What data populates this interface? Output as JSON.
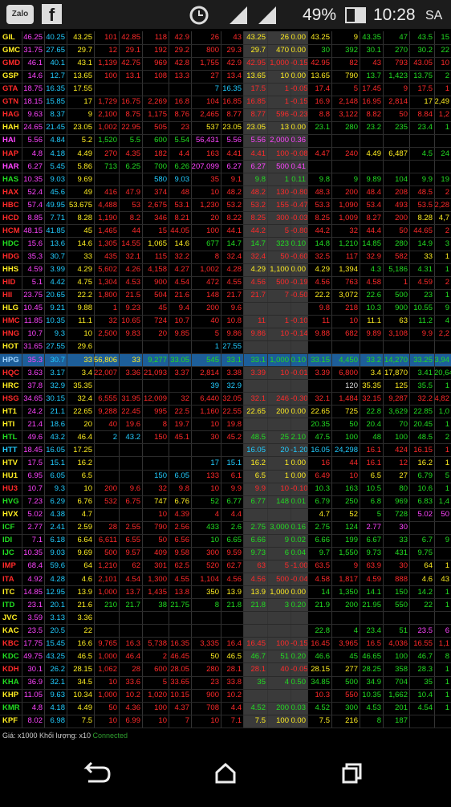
{
  "status_bar": {
    "battery": "49%",
    "time": "10:28",
    "period": "SA"
  },
  "table": {
    "selected_row": 25,
    "rows": [
      [
        "GIL",
        "46.25",
        "40.25",
        "43.25",
        "101",
        "42.85",
        "118",
        "42.9",
        "26",
        "43",
        "43.25",
        "26",
        "0.00",
        "43.25",
        "9",
        "43.35",
        "47",
        "43.5",
        "15"
      ],
      [
        "GMC",
        "31.75",
        "27.65",
        "29.7",
        "12",
        "29.1",
        "192",
        "29.2",
        "800",
        "29.3",
        "29.7",
        "470",
        "0.00",
        "30",
        "392",
        "30.1",
        "270",
        "30.2",
        "22"
      ],
      [
        "GMD",
        "46.1",
        "40.1",
        "43.1",
        "1,139",
        "42.75",
        "969",
        "42.8",
        "1,755",
        "42.9",
        "42.95",
        "1,000",
        "-0.15",
        "42.95",
        "82",
        "43",
        "793",
        "43.05",
        "10"
      ],
      [
        "GSP",
        "14.6",
        "12.7",
        "13.65",
        "100",
        "13.1",
        "108",
        "13.3",
        "27",
        "13.4",
        "13.65",
        "10",
        "0.00",
        "13.65",
        "790",
        "13.7",
        "1,423",
        "13.75",
        "2"
      ],
      [
        "GTA",
        "18.75",
        "16.35",
        "17.55",
        null,
        null,
        null,
        null,
        "7",
        "16.35",
        "17.5",
        "1",
        "-0.05",
        "17.4",
        "5",
        "17.45",
        "9",
        "17.5",
        "1"
      ],
      [
        "GTN",
        "18.15",
        "15.85",
        "17",
        "1,729",
        "16.75",
        "2,269",
        "16.8",
        "104",
        "16.85",
        "16.85",
        "1",
        "-0.15",
        "16.9",
        "2,148",
        "16.95",
        "2,814",
        "17",
        "2,49"
      ],
      [
        "HAG",
        "9.63",
        "8.37",
        "9",
        "2,100",
        "8.75",
        "1,175",
        "8.76",
        "2,465",
        "8.77",
        "8.77",
        "596",
        "-0.23",
        "8.8",
        "3,122",
        "8.82",
        "50",
        "8.84",
        "1,2"
      ],
      [
        "HAH",
        "24.65",
        "21.45",
        "23.05",
        "1,002",
        "22.95",
        "505",
        "23",
        "537",
        "23.05",
        "23.05",
        "13",
        "0.00",
        "23.1",
        "280",
        "23.2",
        "235",
        "23.4",
        "1"
      ],
      [
        "HAI",
        "5.56",
        "4.84",
        "5.2",
        "1,520",
        "5.5",
        "600",
        "5.54",
        "56,431",
        "5.56",
        "5.56",
        "2,000",
        "0.36",
        null,
        null,
        null,
        null,
        null,
        null
      ],
      [
        "HAP",
        "4.8",
        "4.18",
        "4.49",
        "270",
        "4.35",
        "182",
        "4.4",
        "163",
        "4.41",
        "4.41",
        "100",
        "-0.08",
        "4.47",
        "240",
        "4.49",
        "6,487",
        "4.5",
        "24"
      ],
      [
        "HAR",
        "6.27",
        "5.45",
        "5.86",
        "713",
        "6.25",
        "700",
        "6.26",
        "207,099",
        "6.27",
        "6.27",
        "500",
        "0.41",
        null,
        null,
        null,
        null,
        null,
        null
      ],
      [
        "HAS",
        "10.35",
        "9.03",
        "9.69",
        null,
        null,
        "580",
        "9.03",
        "35",
        "9.1",
        "9.8",
        "1",
        "0.11",
        "9.8",
        "9",
        "9.89",
        "104",
        "9.9",
        "19"
      ],
      [
        "HAX",
        "52.4",
        "45.6",
        "49",
        "416",
        "47.9",
        "374",
        "48",
        "10",
        "48.2",
        "48.2",
        "130",
        "-0.80",
        "48.3",
        "200",
        "48.4",
        "208",
        "48.5",
        "2"
      ],
      [
        "HBC",
        "57.4",
        "49.95",
        "53.675",
        "4,488",
        "53",
        "2,675",
        "53.1",
        "1,230",
        "53.2",
        "53.2",
        "155",
        "-0.47",
        "53.3",
        "1,090",
        "53.4",
        "493",
        "53.5",
        "2,28"
      ],
      [
        "HCD",
        "8.85",
        "7.71",
        "8.28",
        "1,190",
        "8.2",
        "346",
        "8.21",
        "20",
        "8.22",
        "8.25",
        "300",
        "-0.03",
        "8.25",
        "1,009",
        "8.27",
        "200",
        "8.28",
        "4,7"
      ],
      [
        "HCM",
        "48.15",
        "41.85",
        "45",
        "1,465",
        "44",
        "15",
        "44.05",
        "100",
        "44.1",
        "44.2",
        "5",
        "-0.80",
        "44.2",
        "32",
        "44.4",
        "50",
        "44.65",
        "2"
      ],
      [
        "HDC",
        "15.6",
        "13.6",
        "14.6",
        "1,305",
        "14.55",
        "1,065",
        "14.6",
        "677",
        "14.7",
        "14.7",
        "323",
        "0.10",
        "14.8",
        "1,210",
        "14.85",
        "280",
        "14.9",
        "3"
      ],
      [
        "HDG",
        "35.3",
        "30.7",
        "33",
        "435",
        "32.1",
        "115",
        "32.2",
        "8",
        "32.4",
        "32.4",
        "50",
        "-0.60",
        "32.5",
        "117",
        "32.9",
        "582",
        "33",
        "1"
      ],
      [
        "HHS",
        "4.59",
        "3.99",
        "4.29",
        "5,602",
        "4.26",
        "4,158",
        "4.27",
        "1,002",
        "4.28",
        "4.29",
        "1,100",
        "0.00",
        "4.29",
        "1,394",
        "4.3",
        "5,186",
        "4.31",
        "1"
      ],
      [
        "HID",
        "5.1",
        "4.42",
        "4.75",
        "1,304",
        "4.53",
        "900",
        "4.54",
        "472",
        "4.55",
        "4.56",
        "500",
        "-0.19",
        "4.56",
        "763",
        "4.58",
        "1",
        "4.59",
        "2"
      ],
      [
        "HII",
        "23.75",
        "20.65",
        "22.2",
        "1,800",
        "21.5",
        "504",
        "21.6",
        "148",
        "21.7",
        "21.7",
        "7",
        "-0.50",
        "22.2",
        "3,072",
        "22.6",
        "500",
        "23",
        "1"
      ],
      [
        "HLG",
        "10.45",
        "9.21",
        "9.88",
        "1",
        "9.23",
        "45",
        "9.4",
        "200",
        "9.6",
        null,
        null,
        null,
        "9.8",
        "218",
        "10.3",
        "900",
        "10.55",
        "9"
      ],
      [
        "HMC",
        "11.85",
        "10.35",
        "11.1",
        "32",
        "10.65",
        "724",
        "10.7",
        "40",
        "10.8",
        "11",
        "1",
        "-0.10",
        "11",
        "10",
        "11.1",
        "63",
        "11.2",
        "4"
      ],
      [
        "HNG",
        "10.7",
        "9.3",
        "10",
        "2,500",
        "9.83",
        "20",
        "9.85",
        "5",
        "9.86",
        "9.86",
        "10",
        "-0.14",
        "9.88",
        "682",
        "9.89",
        "3,108",
        "9.9",
        "2,2"
      ],
      [
        "HOT",
        "31.65",
        "27.55",
        "29.6",
        null,
        null,
        null,
        null,
        "1",
        "27.55",
        null,
        null,
        null,
        null,
        null,
        null,
        null,
        null,
        null
      ],
      [
        "HPG",
        "35.3",
        "30.7",
        "33",
        "56,806",
        "33",
        "9,277",
        "33.05",
        "545",
        "33.1",
        "33.1",
        "1,000",
        "0.10",
        "33.15",
        "4,450",
        "33.2",
        "14,270",
        "33.25",
        "3,94"
      ],
      [
        "HQC",
        "3.63",
        "3.17",
        "3.4",
        "22,007",
        "3.36",
        "21,093",
        "3.37",
        "2,814",
        "3.38",
        "3.39",
        "10",
        "-0.01",
        "3.39",
        "6,800",
        "3.4",
        "17,870",
        "3.41",
        "20,64"
      ],
      [
        "HRC",
        "37.8",
        "32.9",
        "35.35",
        null,
        null,
        null,
        null,
        "39",
        "32.9",
        null,
        null,
        null,
        null,
        "120",
        "35.35",
        "125",
        "35.5",
        "1"
      ],
      [
        "HSG",
        "34.65",
        "30.15",
        "32.4",
        "6,555",
        "31.95",
        "12,009",
        "32",
        "6,440",
        "32.05",
        "32.1",
        "246",
        "-0.30",
        "32.1",
        "1,484",
        "32.15",
        "9,287",
        "32.2",
        "4,82"
      ],
      [
        "HT1",
        "24.2",
        "21.1",
        "22.65",
        "9,288",
        "22.45",
        "995",
        "22.5",
        "1,160",
        "22.55",
        "22.65",
        "200",
        "0.00",
        "22.65",
        "725",
        "22.8",
        "3,629",
        "22.85",
        "1,0"
      ],
      [
        "HTI",
        "21.4",
        "18.6",
        "20",
        "40",
        "19.6",
        "8",
        "19.7",
        "10",
        "19.8",
        null,
        null,
        null,
        "20.35",
        "50",
        "20.4",
        "70",
        "20.45",
        "1"
      ],
      [
        "HTL",
        "49.6",
        "43.2",
        "46.4",
        "2",
        "43.2",
        "150",
        "45.1",
        "30",
        "45.2",
        "48.5",
        "25",
        "2.10",
        "47.5",
        "100",
        "48",
        "100",
        "48.5",
        "2"
      ],
      [
        "HTT",
        "18.45",
        "16.05",
        "17.25",
        null,
        null,
        null,
        null,
        null,
        null,
        "16.05",
        "20",
        "-1.20",
        "16.05",
        "24,298",
        "16.1",
        "424",
        "16.15",
        "1"
      ],
      [
        "HTV",
        "17.5",
        "15.1",
        "16.2",
        null,
        null,
        null,
        null,
        "17",
        "15.1",
        "16.2",
        "1",
        "0.00",
        "16",
        "44",
        "16.1",
        "12",
        "16.2",
        "1"
      ],
      [
        "HU1",
        "6.95",
        "6.05",
        "6.5",
        null,
        null,
        "150",
        "6.05",
        "133",
        "6.1",
        "6.5",
        "1",
        "0.00",
        "6.49",
        "10",
        "6.5",
        "27",
        "6.79",
        "5"
      ],
      [
        "HU3",
        "10.7",
        "9.3",
        "10",
        "200",
        "9.6",
        "32",
        "9.8",
        "10",
        "9.9",
        "9.9",
        "10",
        "-0.10",
        "10.3",
        "163",
        "10.5",
        "80",
        "10.6",
        "1"
      ],
      [
        "HVG",
        "7.23",
        "6.29",
        "6.76",
        "532",
        "6.75",
        "747",
        "6.76",
        "52",
        "6.77",
        "6.77",
        "148",
        "0.01",
        "6.79",
        "250",
        "6.8",
        "969",
        "6.83",
        "1,4"
      ],
      [
        "HVX",
        "5.02",
        "4.38",
        "4.7",
        null,
        null,
        "10",
        "4.39",
        "4",
        "4.4",
        null,
        null,
        null,
        "4.7",
        "52",
        "5",
        "728",
        "5.02",
        "50"
      ],
      [
        "ICF",
        "2.77",
        "2.41",
        "2.59",
        "28",
        "2.55",
        "790",
        "2.56",
        "433",
        "2.6",
        "2.75",
        "3,000",
        "0.16",
        "2.75",
        "124",
        "2.77",
        "30",
        null,
        null
      ],
      [
        "IDI",
        "7.1",
        "6.18",
        "6.64",
        "6,611",
        "6.55",
        "50",
        "6.56",
        "10",
        "6.65",
        "6.66",
        "9",
        "0.02",
        "6.66",
        "199",
        "6.67",
        "33",
        "6.7",
        "9"
      ],
      [
        "IJC",
        "10.35",
        "9.03",
        "9.69",
        "500",
        "9.57",
        "409",
        "9.58",
        "300",
        "9.59",
        "9.73",
        "6",
        "0.04",
        "9.7",
        "1,550",
        "9.73",
        "431",
        "9.75",
        null
      ],
      [
        "IMP",
        "68.4",
        "59.6",
        "64",
        "1,210",
        "62",
        "301",
        "62.5",
        "520",
        "62.7",
        "63",
        "5",
        "-1.00",
        "63.5",
        "9",
        "63.9",
        "30",
        "64",
        "1"
      ],
      [
        "ITA",
        "4.92",
        "4.28",
        "4.6",
        "2,101",
        "4.54",
        "1,300",
        "4.55",
        "1,104",
        "4.56",
        "4.56",
        "500",
        "-0.04",
        "4.58",
        "1,817",
        "4.59",
        "888",
        "4.6",
        "43"
      ],
      [
        "ITC",
        "14.85",
        "12.95",
        "13.9",
        "1,000",
        "13.7",
        "1,435",
        "13.8",
        "350",
        "13.9",
        "13.9",
        "1,000",
        "0.00",
        "14",
        "1,350",
        "14.1",
        "150",
        "14.2",
        "1"
      ],
      [
        "ITD",
        "23.1",
        "20.1",
        "21.6",
        "210",
        "21.7",
        "38",
        "21.75",
        "8",
        "21.8",
        "21.8",
        "3",
        "0.20",
        "21.9",
        "200",
        "21.95",
        "550",
        "22",
        "1"
      ],
      [
        "JVC",
        "3.59",
        "3.13",
        "3.36",
        null,
        null,
        null,
        null,
        null,
        null,
        null,
        null,
        null,
        null,
        null,
        null,
        null,
        null,
        null
      ],
      [
        "KAC",
        "23.5",
        "20.5",
        "22",
        null,
        null,
        null,
        null,
        null,
        null,
        null,
        null,
        null,
        "22.8",
        "4",
        "23.4",
        "51",
        "23.5",
        "6"
      ],
      [
        "KBC",
        "17.75",
        "15.45",
        "16.6",
        "9,765",
        "16.3",
        "5,738",
        "16.35",
        "3,335",
        "16.4",
        "16.45",
        "100",
        "-0.15",
        "16.45",
        "3,965",
        "16.5",
        "4,036",
        "16.55",
        "1,1"
      ],
      [
        "KDC",
        "49.75",
        "43.25",
        "46.5",
        "1,000",
        "46.4",
        "2",
        "46.45",
        "50",
        "46.5",
        "46.7",
        "51",
        "0.20",
        "46.6",
        "45",
        "46.65",
        "100",
        "46.7",
        "8"
      ],
      [
        "KDH",
        "30.1",
        "26.2",
        "28.15",
        "1,062",
        "28",
        "600",
        "28.05",
        "280",
        "28.1",
        "28.1",
        "40",
        "-0.05",
        "28.15",
        "277",
        "28.25",
        "358",
        "28.3",
        "1"
      ],
      [
        "KHA",
        "36.9",
        "32.1",
        "34.5",
        "10",
        "33.6",
        "5",
        "33.65",
        "23",
        "33.8",
        "35",
        "4",
        "0.50",
        "34.85",
        "500",
        "34.9",
        "704",
        "35",
        "1"
      ],
      [
        "KHP",
        "11.05",
        "9.63",
        "10.34",
        "1,000",
        "10.2",
        "1,020",
        "10.15",
        "900",
        "10.2",
        null,
        null,
        null,
        "10.3",
        "550",
        "10.35",
        "1,662",
        "10.4",
        "1"
      ],
      [
        "KMR",
        "4.8",
        "4.18",
        "4.49",
        "50",
        "4.36",
        "100",
        "4.37",
        "708",
        "4.4",
        "4.52",
        "200",
        "0.03",
        "4.52",
        "300",
        "4.53",
        "201",
        "4.54",
        "1"
      ],
      [
        "KPF",
        "8.02",
        "6.98",
        "7.5",
        "10",
        "6.99",
        "10",
        "7",
        "10",
        "7.1",
        "7.5",
        "100",
        "0.00",
        "7.5",
        "216",
        "8",
        "187",
        null,
        null
      ]
    ]
  },
  "footer": {
    "units": "Giá: x1000 Khối lượng: x10",
    "status": "Connected"
  }
}
